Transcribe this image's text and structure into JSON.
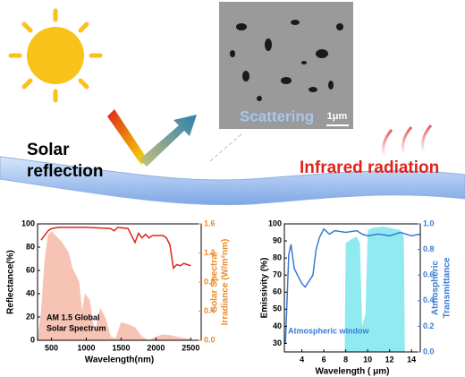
{
  "illustration": {
    "solar_reflection": [
      "Solar",
      "reflection"
    ],
    "scattering": "Scattering",
    "scale_bar": "1μm",
    "infrared": "Infrared radiation"
  },
  "chart_data": [
    {
      "type": "line",
      "xlabel": "Wavelength(nm)",
      "ylabel": "Reflectance(%)",
      "y2label": [
        "Solar Spectral",
        "Irradiance (W/m²nm)"
      ],
      "y2_color": "#f08a24",
      "xlim": [
        300,
        2650
      ],
      "xticks": [
        500,
        1000,
        1500,
        2000,
        2500
      ],
      "ylim": [
        0,
        100
      ],
      "yticks": [
        0,
        20,
        40,
        60,
        80,
        100
      ],
      "y2lim": [
        0,
        1.6
      ],
      "y2ticks": [
        {
          "value": 0,
          "label": "0.0"
        },
        0.4,
        0.8,
        1.2,
        1.6
      ],
      "annotation": [
        "AM 1.5 Global",
        "Solar Spectrum"
      ],
      "series": [
        {
          "style": "area",
          "axis": "y2",
          "color": "#f4b9a8",
          "x": [
            300,
            350,
            400,
            450,
            500,
            550,
            650,
            750,
            800,
            900,
            940,
            980,
            1050,
            1120,
            1200,
            1280,
            1350,
            1420,
            1500,
            1600,
            1700,
            1800,
            1900,
            2000,
            2100,
            2200,
            2300,
            2400,
            2500
          ],
          "values": [
            0,
            0.4,
            1.1,
            1.45,
            1.5,
            1.45,
            1.35,
            1.2,
            1.0,
            0.8,
            0.4,
            0.65,
            0.55,
            0.1,
            0.45,
            0.3,
            0.05,
            0.03,
            0.25,
            0.22,
            0.18,
            0.05,
            0.0,
            0.05,
            0.08,
            0.07,
            0.05,
            0.03,
            0.02
          ]
        },
        {
          "style": "line",
          "axis": "y",
          "color": "#e0241b",
          "x": [
            350,
            400,
            450,
            500,
            600,
            800,
            1000,
            1200,
            1350,
            1400,
            1450,
            1600,
            1650,
            1700,
            1750,
            1800,
            1850,
            1900,
            1950,
            2000,
            2100,
            2150,
            2200,
            2250,
            2300,
            2350,
            2400,
            2450,
            2500
          ],
          "values": [
            86,
            90,
            94,
            96,
            97,
            97,
            97,
            96.5,
            96,
            94,
            97,
            96,
            90,
            84,
            92,
            88,
            91,
            88,
            90,
            90,
            90,
            88,
            82,
            62,
            65,
            64,
            66,
            65,
            64
          ]
        }
      ]
    },
    {
      "type": "line",
      "xlabel": "Wavelength ( μm)",
      "ylabel": "Emissivity (%)",
      "y2label": [
        "Atmospheric",
        "Transmittance"
      ],
      "y2_color": "#3a7bd5",
      "xlim": [
        2.4,
        14.8
      ],
      "xticks": [
        4,
        6,
        8,
        10,
        12,
        14
      ],
      "ylim": [
        25,
        100
      ],
      "yticks": [
        30,
        40,
        50,
        60,
        70,
        80,
        90,
        100
      ],
      "y2lim": [
        0,
        1.0
      ],
      "y2ticks": [
        {
          "value": 0,
          "label": "0.0"
        },
        0.2,
        0.4,
        0.6,
        0.8,
        {
          "value": 1,
          "label": "1.0"
        }
      ],
      "annotation": [
        "Atmospheric window"
      ],
      "series": [
        {
          "style": "area",
          "axis": "y2",
          "color": "#7fe6ee",
          "x": [
            7.9,
            8.0,
            8.5,
            9.0,
            9.3,
            9.5,
            9.8,
            10.0,
            10.5,
            11.5,
            12.5,
            13.0,
            13.3,
            13.4
          ],
          "values": [
            0,
            0.85,
            0.88,
            0.9,
            0.85,
            0.2,
            0.3,
            0.95,
            0.97,
            0.98,
            0.96,
            0.95,
            0.9,
            0
          ]
        },
        {
          "style": "line",
          "axis": "y",
          "color": "#3a7bd5",
          "x": [
            2.5,
            2.8,
            3.0,
            3.3,
            3.6,
            4.0,
            4.3,
            4.6,
            5.0,
            5.3,
            5.6,
            6.0,
            6.5,
            7,
            8,
            9,
            9.5,
            10,
            11,
            12,
            13,
            14,
            14.8
          ],
          "values": [
            30,
            82,
            88,
            74,
            70,
            65,
            63,
            66,
            70,
            85,
            92,
            97,
            94,
            96,
            95,
            96,
            94,
            93,
            94,
            93,
            95,
            93,
            94
          ]
        }
      ]
    }
  ]
}
